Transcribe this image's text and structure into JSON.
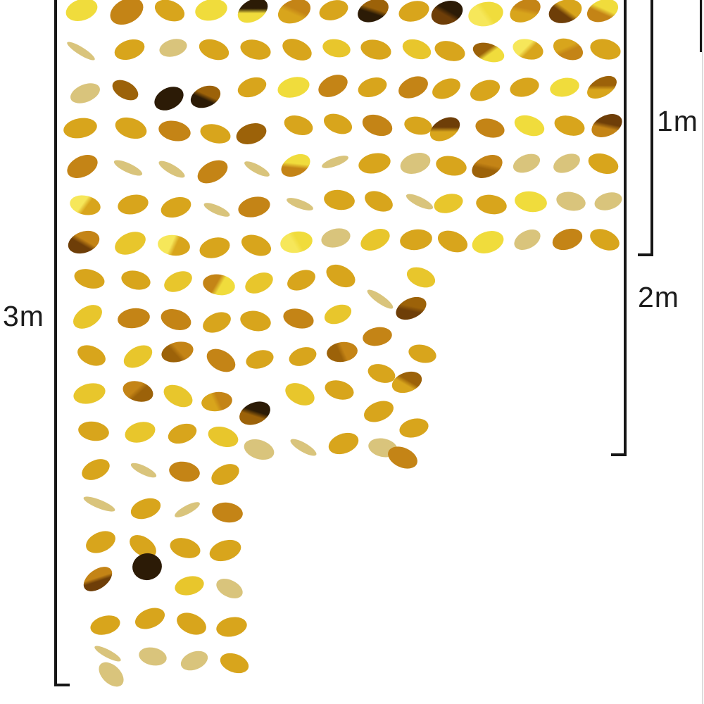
{
  "page": {
    "background": "#ffffff"
  },
  "measurements": {
    "one_m": {
      "label": "1m"
    },
    "two_m": {
      "label": "2m"
    },
    "three_m": {
      "label": "3m"
    },
    "line_color": "#161616",
    "label_color": "#1c1c1c"
  },
  "garland": {
    "subject": "gold sequin circle dot garland strands",
    "palette": [
      "#e8c62c",
      "#d8a51c",
      "#f0dc3c",
      "#c48416",
      "#9c6209",
      "#6e3e08",
      "#2c1b06",
      "#d9c47c",
      "#f6e75a"
    ],
    "discs": [
      [
        116,
        14,
        46,
        30,
        -18,
        2
      ],
      [
        115,
        72,
        46,
        11,
        32,
        7
      ],
      [
        121,
        132,
        44,
        25,
        -22,
        7
      ],
      [
        114,
        182,
        48,
        28,
        -10,
        1
      ],
      [
        117,
        236,
        46,
        29,
        -26,
        3
      ],
      [
        121,
        291,
        44,
        27,
        12,
        1,
        8
      ],
      [
        119,
        344,
        46,
        30,
        -20,
        3,
        5
      ],
      [
        127,
        396,
        44,
        26,
        16,
        1
      ],
      [
        124,
        450,
        45,
        28,
        -32,
        0
      ],
      [
        130,
        505,
        42,
        26,
        24,
        1
      ],
      [
        127,
        559,
        46,
        28,
        -14,
        0
      ],
      [
        133,
        612,
        44,
        27,
        9,
        1
      ],
      [
        136,
        667,
        42,
        26,
        -26,
        1
      ],
      [
        141,
        716,
        48,
        12,
        22,
        7
      ],
      [
        143,
        770,
        44,
        28,
        -24,
        1
      ],
      [
        139,
        822,
        46,
        27,
        -36,
        3,
        5
      ],
      [
        149,
        888,
        43,
        26,
        -15,
        1
      ],
      [
        153,
        928,
        42,
        11,
        28,
        7
      ],
      [
        158,
        958,
        42,
        26,
        44,
        7
      ],
      [
        180,
        16,
        50,
        34,
        -28,
        3
      ],
      [
        184,
        70,
        44,
        27,
        -18,
        1
      ],
      [
        178,
        128,
        40,
        24,
        30,
        4
      ],
      [
        186,
        182,
        46,
        28,
        18,
        1
      ],
      [
        182,
        238,
        44,
        13,
        25,
        7
      ],
      [
        189,
        290,
        44,
        27,
        -12,
        1
      ],
      [
        185,
        345,
        46,
        29,
        -24,
        0
      ],
      [
        193,
        398,
        42,
        26,
        14,
        1
      ],
      [
        190,
        452,
        46,
        28,
        -8,
        3
      ],
      [
        196,
        506,
        44,
        27,
        -30,
        0
      ],
      [
        196,
        556,
        44,
        28,
        16,
        4,
        3
      ],
      [
        199,
        614,
        44,
        28,
        -16,
        0
      ],
      [
        204,
        668,
        40,
        12,
        26,
        7
      ],
      [
        207,
        722,
        44,
        27,
        -20,
        1
      ],
      [
        203,
        776,
        42,
        26,
        34,
        1
      ],
      [
        209,
        805,
        42,
        38,
        -10,
        6
      ],
      [
        213,
        878,
        44,
        27,
        -22,
        1
      ],
      [
        217,
        932,
        40,
        25,
        12,
        7
      ],
      [
        241,
        15,
        44,
        28,
        22,
        1
      ],
      [
        246,
        68,
        40,
        24,
        -15,
        7
      ],
      [
        240,
        140,
        44,
        30,
        -28,
        6
      ],
      [
        248,
        186,
        46,
        28,
        12,
        3
      ],
      [
        244,
        240,
        42,
        13,
        30,
        7
      ],
      [
        250,
        294,
        44,
        27,
        -18,
        1
      ],
      [
        247,
        348,
        46,
        29,
        8,
        1,
        8
      ],
      [
        253,
        400,
        42,
        26,
        -25,
        0
      ],
      [
        250,
        454,
        44,
        28,
        18,
        3
      ],
      [
        252,
        500,
        46,
        28,
        -14,
        3,
        4
      ],
      [
        253,
        562,
        44,
        27,
        28,
        0
      ],
      [
        259,
        616,
        42,
        26,
        -20,
        1
      ],
      [
        262,
        670,
        44,
        28,
        10,
        3
      ],
      [
        266,
        724,
        40,
        12,
        -28,
        7
      ],
      [
        263,
        778,
        44,
        27,
        16,
        1
      ],
      [
        269,
        832,
        42,
        26,
        -14,
        0
      ],
      [
        272,
        886,
        44,
        28,
        24,
        1
      ],
      [
        276,
        938,
        40,
        25,
        -22,
        7
      ],
      [
        300,
        14,
        46,
        30,
        -12,
        2
      ],
      [
        304,
        70,
        44,
        27,
        20,
        1
      ],
      [
        292,
        137,
        44,
        29,
        -22,
        4,
        6
      ],
      [
        306,
        190,
        44,
        26,
        15,
        1
      ],
      [
        302,
        244,
        46,
        28,
        -28,
        3
      ],
      [
        308,
        298,
        40,
        12,
        24,
        7
      ],
      [
        305,
        352,
        44,
        28,
        -16,
        1
      ],
      [
        311,
        404,
        46,
        29,
        10,
        2,
        3
      ],
      [
        308,
        458,
        42,
        26,
        -24,
        1
      ],
      [
        314,
        512,
        44,
        28,
        30,
        3
      ],
      [
        308,
        570,
        44,
        27,
        -8,
        3,
        1
      ],
      [
        317,
        620,
        44,
        27,
        18,
        0
      ],
      [
        320,
        674,
        42,
        26,
        -26,
        1
      ],
      [
        323,
        728,
        44,
        28,
        8,
        3
      ],
      [
        320,
        782,
        46,
        28,
        -18,
        1
      ],
      [
        326,
        836,
        40,
        24,
        26,
        7
      ],
      [
        329,
        890,
        44,
        27,
        -12,
        1
      ],
      [
        333,
        942,
        42,
        26,
        20,
        1
      ],
      [
        359,
        15,
        46,
        30,
        -30,
        6,
        2
      ],
      [
        363,
        70,
        44,
        27,
        15,
        1
      ],
      [
        358,
        124,
        42,
        26,
        -20,
        1
      ],
      [
        357,
        190,
        44,
        28,
        -18,
        4
      ],
      [
        365,
        240,
        40,
        12,
        28,
        7
      ],
      [
        361,
        294,
        46,
        28,
        -14,
        3
      ],
      [
        364,
        348,
        44,
        27,
        22,
        1
      ],
      [
        368,
        402,
        42,
        26,
        -26,
        0
      ],
      [
        363,
        456,
        44,
        28,
        12,
        1
      ],
      [
        369,
        510,
        40,
        25,
        -16,
        1
      ],
      [
        362,
        587,
        46,
        30,
        -24,
        6,
        4
      ],
      [
        368,
        638,
        44,
        27,
        18,
        7
      ],
      [
        418,
        16,
        48,
        32,
        -22,
        3,
        1
      ],
      [
        422,
        70,
        44,
        27,
        25,
        1
      ],
      [
        417,
        124,
        46,
        28,
        -15,
        2
      ],
      [
        424,
        178,
        42,
        26,
        18,
        1
      ],
      [
        420,
        235,
        44,
        28,
        -28,
        2,
        3
      ],
      [
        426,
        290,
        40,
        12,
        20,
        7
      ],
      [
        421,
        344,
        46,
        30,
        -10,
        2,
        8
      ],
      [
        428,
        398,
        42,
        26,
        -24,
        1
      ],
      [
        424,
        452,
        44,
        27,
        14,
        3
      ],
      [
        430,
        506,
        40,
        25,
        -18,
        1
      ],
      [
        426,
        560,
        44,
        28,
        26,
        0
      ],
      [
        431,
        635,
        42,
        13,
        30,
        7
      ],
      [
        474,
        14,
        42,
        27,
        -18,
        1
      ],
      [
        478,
        68,
        40,
        25,
        12,
        0
      ],
      [
        473,
        122,
        44,
        28,
        -26,
        3
      ],
      [
        480,
        176,
        42,
        26,
        22,
        1
      ],
      [
        476,
        230,
        40,
        12,
        -20,
        7
      ],
      [
        482,
        284,
        44,
        28,
        8,
        1
      ],
      [
        477,
        338,
        42,
        26,
        -14,
        7
      ],
      [
        484,
        392,
        44,
        28,
        28,
        1
      ],
      [
        480,
        446,
        40,
        25,
        -22,
        0
      ],
      [
        486,
        500,
        44,
        28,
        -8,
        3,
        4
      ],
      [
        482,
        554,
        42,
        26,
        16,
        1
      ],
      [
        488,
        630,
        44,
        28,
        -20,
        1
      ],
      [
        530,
        15,
        46,
        30,
        -24,
        4,
        6
      ],
      [
        534,
        70,
        44,
        27,
        14,
        1
      ],
      [
        529,
        124,
        42,
        26,
        -18,
        1
      ],
      [
        536,
        178,
        44,
        28,
        20,
        3
      ],
      [
        532,
        232,
        46,
        28,
        -12,
        1
      ],
      [
        538,
        286,
        42,
        26,
        24,
        1
      ],
      [
        533,
        340,
        44,
        27,
        -26,
        0
      ],
      [
        540,
        425,
        44,
        12,
        35,
        7
      ],
      [
        536,
        478,
        42,
        26,
        -10,
        3
      ],
      [
        542,
        530,
        40,
        25,
        18,
        1
      ],
      [
        538,
        584,
        44,
        27,
        -22,
        1
      ],
      [
        544,
        636,
        42,
        26,
        12,
        7
      ],
      [
        588,
        16,
        44,
        28,
        -16,
        1
      ],
      [
        592,
        70,
        42,
        26,
        20,
        0
      ],
      [
        587,
        124,
        44,
        28,
        -24,
        3
      ],
      [
        594,
        178,
        40,
        25,
        12,
        1
      ],
      [
        590,
        232,
        44,
        28,
        -18,
        7
      ],
      [
        596,
        286,
        42,
        13,
        26,
        7
      ],
      [
        591,
        340,
        46,
        29,
        -8,
        1
      ],
      [
        598,
        394,
        42,
        26,
        22,
        0
      ],
      [
        584,
        438,
        46,
        28,
        -26,
        4,
        5
      ],
      [
        600,
        502,
        40,
        25,
        14,
        1
      ],
      [
        578,
        543,
        44,
        28,
        -20,
        4,
        1
      ],
      [
        588,
        608,
        42,
        26,
        -14,
        1
      ],
      [
        572,
        650,
        44,
        28,
        24,
        3
      ],
      [
        635,
        18,
        46,
        32,
        -20,
        6,
        5
      ],
      [
        639,
        72,
        44,
        27,
        16,
        1
      ],
      [
        634,
        126,
        42,
        26,
        -24,
        1
      ],
      [
        632,
        183,
        46,
        29,
        -30,
        5,
        1
      ],
      [
        641,
        235,
        44,
        27,
        12,
        1
      ],
      [
        637,
        289,
        42,
        26,
        -16,
        0
      ],
      [
        643,
        343,
        44,
        28,
        22,
        1
      ],
      [
        690,
        20,
        50,
        34,
        -12,
        2,
        8
      ],
      [
        694,
        74,
        46,
        25,
        18,
        2,
        4
      ],
      [
        689,
        128,
        44,
        27,
        -22,
        1
      ],
      [
        696,
        182,
        42,
        26,
        14,
        3
      ],
      [
        692,
        236,
        46,
        29,
        -26,
        3,
        4
      ],
      [
        698,
        290,
        44,
        27,
        10,
        1
      ],
      [
        693,
        344,
        46,
        30,
        -18,
        2
      ],
      [
        746,
        15,
        46,
        30,
        -26,
        3,
        1
      ],
      [
        750,
        70,
        44,
        28,
        15,
        1,
        8
      ],
      [
        745,
        124,
        42,
        26,
        -14,
        1
      ],
      [
        752,
        178,
        44,
        27,
        20,
        2
      ],
      [
        748,
        232,
        40,
        24,
        -22,
        7
      ],
      [
        754,
        286,
        46,
        29,
        8,
        2
      ],
      [
        749,
        340,
        40,
        25,
        -28,
        7
      ],
      [
        803,
        16,
        48,
        32,
        -18,
        1,
        5
      ],
      [
        807,
        70,
        44,
        28,
        22,
        3,
        1
      ],
      [
        802,
        124,
        42,
        26,
        -12,
        2
      ],
      [
        809,
        178,
        44,
        27,
        16,
        1
      ],
      [
        805,
        232,
        40,
        24,
        -24,
        7
      ],
      [
        811,
        286,
        42,
        26,
        12,
        7
      ],
      [
        806,
        340,
        44,
        28,
        -20,
        3
      ],
      [
        856,
        15,
        46,
        30,
        -22,
        2,
        3
      ],
      [
        860,
        70,
        44,
        28,
        14,
        1
      ],
      [
        855,
        124,
        46,
        26,
        -30,
        4,
        1
      ],
      [
        862,
        178,
        46,
        29,
        -26,
        5,
        3
      ],
      [
        857,
        232,
        44,
        27,
        18,
        1
      ],
      [
        864,
        286,
        40,
        24,
        -16,
        7
      ],
      [
        859,
        340,
        44,
        27,
        24,
        1
      ]
    ]
  }
}
